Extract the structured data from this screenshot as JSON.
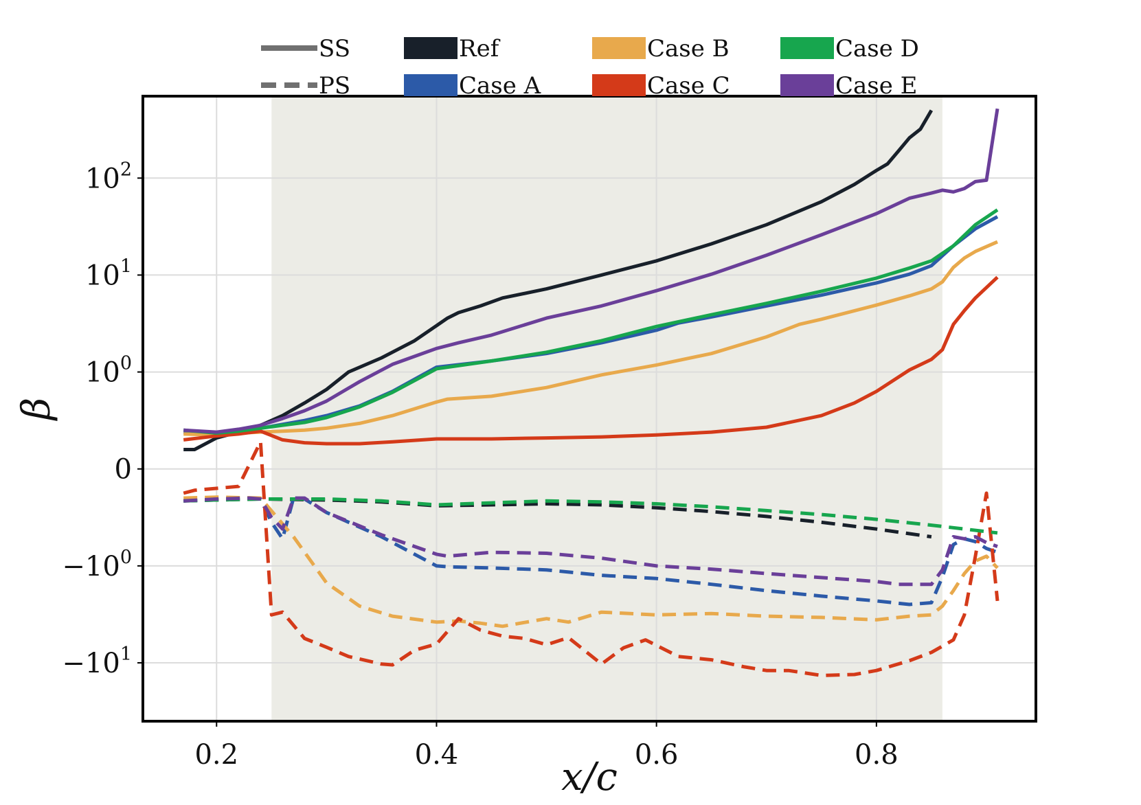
{
  "chart_data": {
    "type": "line",
    "xlabel": "x/c",
    "ylabel": "β",
    "xlim": [
      0.133,
      0.945
    ],
    "yscale": "symlog",
    "linthresh": 1,
    "ylim": [
      -40,
      700
    ],
    "grid": true,
    "shaded_region": {
      "x_start": 0.25,
      "x_end": 0.86,
      "color": "#ecece6"
    },
    "x_ticks": [
      {
        "value": 0.2,
        "label": "0.2"
      },
      {
        "value": 0.4,
        "label": "0.4"
      },
      {
        "value": 0.6,
        "label": "0.6"
      },
      {
        "value": 0.8,
        "label": "0.8"
      }
    ],
    "y_ticks": [
      {
        "value": 100,
        "base": "10",
        "exp": "2",
        "sign": ""
      },
      {
        "value": 10,
        "base": "10",
        "exp": "1",
        "sign": ""
      },
      {
        "value": 1,
        "base": "10",
        "exp": "0",
        "sign": ""
      },
      {
        "value": 0,
        "base": "0",
        "exp": "",
        "sign": ""
      },
      {
        "value": -1,
        "base": "10",
        "exp": "0",
        "sign": "−"
      },
      {
        "value": -10,
        "base": "10",
        "exp": "1",
        "sign": "−"
      }
    ],
    "legend": {
      "placement": "top",
      "styles": [
        {
          "label": "SS",
          "dash": "solid"
        },
        {
          "label": "PS",
          "dash": "dashed"
        }
      ],
      "cases": [
        {
          "label": "Ref",
          "color": "#18202a"
        },
        {
          "label": "Case A",
          "color": "#2c5aa8"
        },
        {
          "label": "Case B",
          "color": "#e8a94c"
        },
        {
          "label": "Case C",
          "color": "#d43a19"
        },
        {
          "label": "Case D",
          "color": "#17a64e"
        },
        {
          "label": "Case E",
          "color": "#6a3f99"
        }
      ]
    },
    "series": [
      {
        "name": "Ref SS",
        "case": "Ref",
        "surface": "SS",
        "color": "#18202a",
        "dash": "solid",
        "x": [
          0.17,
          0.18,
          0.2,
          0.22,
          0.24,
          0.26,
          0.28,
          0.3,
          0.32,
          0.35,
          0.38,
          0.41,
          0.42,
          0.44,
          0.46,
          0.5,
          0.55,
          0.6,
          0.65,
          0.7,
          0.75,
          0.78,
          0.8,
          0.81,
          0.82,
          0.83,
          0.84,
          0.85
        ],
        "y": [
          0.2,
          0.2,
          0.32,
          0.38,
          0.45,
          0.55,
          0.68,
          0.82,
          1.0,
          1.4,
          2.1,
          3.6,
          4.1,
          4.8,
          5.8,
          7.2,
          10,
          14,
          21,
          33,
          57,
          86,
          120,
          140,
          190,
          260,
          320,
          500
        ]
      },
      {
        "name": "Case A SS",
        "case": "Case A",
        "surface": "SS",
        "color": "#2c5aa8",
        "dash": "solid",
        "x": [
          0.17,
          0.2,
          0.22,
          0.24,
          0.26,
          0.28,
          0.3,
          0.33,
          0.36,
          0.4,
          0.45,
          0.5,
          0.55,
          0.6,
          0.62,
          0.65,
          0.7,
          0.75,
          0.8,
          0.83,
          0.85,
          0.87,
          0.89,
          0.91
        ],
        "y": [
          0.38,
          0.35,
          0.38,
          0.42,
          0.46,
          0.5,
          0.55,
          0.65,
          0.8,
          1.12,
          1.3,
          1.55,
          2.0,
          2.7,
          3.2,
          3.7,
          4.8,
          6.2,
          8.3,
          10.2,
          12.5,
          20,
          30,
          40
        ]
      },
      {
        "name": "Case B SS",
        "case": "Case B",
        "surface": "SS",
        "color": "#e8a94c",
        "dash": "solid",
        "x": [
          0.17,
          0.2,
          0.22,
          0.24,
          0.26,
          0.28,
          0.3,
          0.33,
          0.36,
          0.4,
          0.41,
          0.45,
          0.5,
          0.55,
          0.6,
          0.65,
          0.7,
          0.73,
          0.75,
          0.8,
          0.83,
          0.85,
          0.86,
          0.87,
          0.88,
          0.89,
          0.91
        ],
        "y": [
          0.36,
          0.35,
          0.37,
          0.38,
          0.39,
          0.4,
          0.42,
          0.47,
          0.55,
          0.69,
          0.72,
          0.75,
          0.84,
          0.97,
          1.18,
          1.55,
          2.3,
          3.1,
          3.5,
          4.9,
          6.1,
          7.2,
          8.5,
          12,
          15,
          17.5,
          22
        ]
      },
      {
        "name": "Case C SS",
        "case": "Case C",
        "surface": "SS",
        "color": "#d43a19",
        "dash": "solid",
        "x": [
          0.17,
          0.2,
          0.22,
          0.24,
          0.26,
          0.28,
          0.3,
          0.33,
          0.36,
          0.4,
          0.45,
          0.5,
          0.55,
          0.6,
          0.65,
          0.7,
          0.75,
          0.78,
          0.8,
          0.83,
          0.85,
          0.86,
          0.87,
          0.88,
          0.89,
          0.91
        ],
        "y": [
          0.3,
          0.34,
          0.36,
          0.39,
          0.3,
          0.27,
          0.26,
          0.26,
          0.28,
          0.31,
          0.31,
          0.32,
          0.33,
          0.35,
          0.38,
          0.43,
          0.55,
          0.68,
          0.8,
          1.05,
          1.35,
          1.7,
          3.1,
          4.3,
          5.8,
          9.5
        ]
      },
      {
        "name": "Case D SS",
        "case": "Case D",
        "surface": "SS",
        "color": "#17a64e",
        "dash": "solid",
        "x": [
          0.17,
          0.2,
          0.22,
          0.24,
          0.26,
          0.28,
          0.3,
          0.33,
          0.36,
          0.4,
          0.45,
          0.5,
          0.55,
          0.6,
          0.62,
          0.65,
          0.7,
          0.75,
          0.8,
          0.83,
          0.85,
          0.87,
          0.89,
          0.91
        ],
        "y": [
          0.4,
          0.37,
          0.39,
          0.42,
          0.45,
          0.48,
          0.53,
          0.64,
          0.79,
          1.08,
          1.3,
          1.6,
          2.1,
          2.95,
          3.3,
          3.9,
          5.1,
          6.8,
          9.3,
          11.8,
          14,
          20,
          33,
          47
        ]
      },
      {
        "name": "Case E SS",
        "case": "Case E",
        "surface": "SS",
        "color": "#6a3f99",
        "dash": "solid",
        "x": [
          0.17,
          0.2,
          0.22,
          0.24,
          0.26,
          0.28,
          0.3,
          0.33,
          0.36,
          0.4,
          0.42,
          0.45,
          0.5,
          0.55,
          0.6,
          0.65,
          0.7,
          0.75,
          0.8,
          0.83,
          0.85,
          0.86,
          0.87,
          0.88,
          0.89,
          0.9,
          0.91
        ],
        "y": [
          0.4,
          0.38,
          0.41,
          0.45,
          0.52,
          0.6,
          0.7,
          0.9,
          1.2,
          1.75,
          2.0,
          2.4,
          3.6,
          4.8,
          6.9,
          10.2,
          16,
          26,
          43,
          62,
          70,
          75,
          72,
          78,
          92,
          95,
          520
        ]
      },
      {
        "name": "Ref PS",
        "case": "Ref",
        "surface": "PS",
        "color": "#18202a",
        "dash": "dashed",
        "x": [
          0.17,
          0.2,
          0.24,
          0.3,
          0.35,
          0.4,
          0.45,
          0.5,
          0.55,
          0.6,
          0.65,
          0.7,
          0.75,
          0.8,
          0.85
        ],
        "y": [
          -0.33,
          -0.32,
          -0.31,
          -0.32,
          -0.34,
          -0.38,
          -0.37,
          -0.36,
          -0.37,
          -0.4,
          -0.44,
          -0.49,
          -0.55,
          -0.62,
          -0.7
        ]
      },
      {
        "name": "Case A PS",
        "case": "Case A",
        "surface": "PS",
        "color": "#2c5aa8",
        "dash": "dashed",
        "x": [
          0.17,
          0.2,
          0.23,
          0.24,
          0.25,
          0.26,
          0.27,
          0.28,
          0.3,
          0.35,
          0.4,
          0.41,
          0.45,
          0.5,
          0.55,
          0.6,
          0.65,
          0.7,
          0.75,
          0.8,
          0.83,
          0.85,
          0.86,
          0.87,
          0.88,
          0.89,
          0.9,
          0.91
        ],
        "y": [
          -0.33,
          -0.31,
          -0.3,
          -0.31,
          -0.55,
          -0.72,
          -0.3,
          -0.31,
          -0.45,
          -0.7,
          -1.0,
          -1.02,
          -1.05,
          -1.1,
          -1.25,
          -1.35,
          -1.55,
          -1.8,
          -2.05,
          -2.3,
          -2.5,
          -2.4,
          -1.3,
          -0.78,
          -0.72,
          -0.75,
          -0.82,
          -0.86
        ]
      },
      {
        "name": "Case B PS",
        "case": "Case B",
        "surface": "PS",
        "color": "#e8a94c",
        "dash": "dashed",
        "x": [
          0.17,
          0.2,
          0.24,
          0.27,
          0.3,
          0.33,
          0.36,
          0.4,
          0.42,
          0.44,
          0.46,
          0.5,
          0.52,
          0.55,
          0.6,
          0.65,
          0.7,
          0.75,
          0.8,
          0.83,
          0.85,
          0.86,
          0.87,
          0.88,
          0.89,
          0.9,
          0.91
        ],
        "y": [
          -0.3,
          -0.29,
          -0.3,
          -0.7,
          -1.5,
          -2.6,
          -3.3,
          -3.8,
          -3.7,
          -3.9,
          -4.2,
          -3.5,
          -3.8,
          -3.0,
          -3.2,
          -3.1,
          -3.3,
          -3.4,
          -3.6,
          -3.3,
          -3.2,
          -2.6,
          -1.8,
          -1.2,
          -0.95,
          -0.9,
          -1.05
        ]
      },
      {
        "name": "Case C PS",
        "case": "Case C",
        "surface": "PS",
        "color": "#d43a19",
        "dash": "dashed",
        "x": [
          0.17,
          0.18,
          0.2,
          0.22,
          0.24,
          0.25,
          0.26,
          0.28,
          0.3,
          0.32,
          0.35,
          0.36,
          0.38,
          0.4,
          0.42,
          0.44,
          0.46,
          0.48,
          0.5,
          0.52,
          0.55,
          0.57,
          0.59,
          0.62,
          0.65,
          0.68,
          0.7,
          0.72,
          0.75,
          0.78,
          0.8,
          0.83,
          0.85,
          0.87,
          0.88,
          0.89,
          0.9,
          0.91
        ],
        "y": [
          -0.25,
          -0.22,
          -0.2,
          -0.18,
          0.28,
          -3.2,
          -3.0,
          -5.6,
          -6.9,
          -8.6,
          -10.3,
          -10.5,
          -7.4,
          -6.4,
          -3.5,
          -4.6,
          -5.3,
          -5.6,
          -6.5,
          -5.5,
          -10.3,
          -7.0,
          -5.8,
          -8.6,
          -9.3,
          -11.0,
          -12.0,
          -12.0,
          -13.5,
          -13.2,
          -12.0,
          -9.5,
          -7.8,
          -5.8,
          -3.2,
          -0.9,
          -0.25,
          -2.3
        ]
      },
      {
        "name": "Case D PS",
        "case": "Case D",
        "surface": "PS",
        "color": "#17a64e",
        "dash": "dashed",
        "x": [
          0.17,
          0.2,
          0.24,
          0.3,
          0.35,
          0.4,
          0.45,
          0.5,
          0.55,
          0.6,
          0.65,
          0.7,
          0.75,
          0.8,
          0.85,
          0.88,
          0.91
        ],
        "y": [
          -0.33,
          -0.32,
          -0.31,
          -0.31,
          -0.33,
          -0.37,
          -0.35,
          -0.33,
          -0.34,
          -0.36,
          -0.39,
          -0.43,
          -0.47,
          -0.52,
          -0.58,
          -0.62,
          -0.66
        ]
      },
      {
        "name": "Case E PS",
        "case": "Case E",
        "surface": "PS",
        "color": "#6a3f99",
        "dash": "dashed",
        "x": [
          0.17,
          0.2,
          0.23,
          0.24,
          0.25,
          0.26,
          0.27,
          0.28,
          0.3,
          0.35,
          0.4,
          0.41,
          0.45,
          0.5,
          0.55,
          0.6,
          0.65,
          0.7,
          0.75,
          0.8,
          0.82,
          0.85,
          0.86,
          0.87,
          0.88,
          0.89,
          0.9,
          0.91
        ],
        "y": [
          -0.33,
          -0.31,
          -0.3,
          -0.31,
          -0.5,
          -0.62,
          -0.3,
          -0.3,
          -0.45,
          -0.68,
          -0.88,
          -0.9,
          -0.86,
          -0.87,
          -0.92,
          -1.0,
          -1.08,
          -1.2,
          -1.32,
          -1.45,
          -1.55,
          -1.55,
          -1.1,
          -0.7,
          -0.72,
          -0.7,
          -0.76,
          -0.8
        ]
      }
    ]
  }
}
